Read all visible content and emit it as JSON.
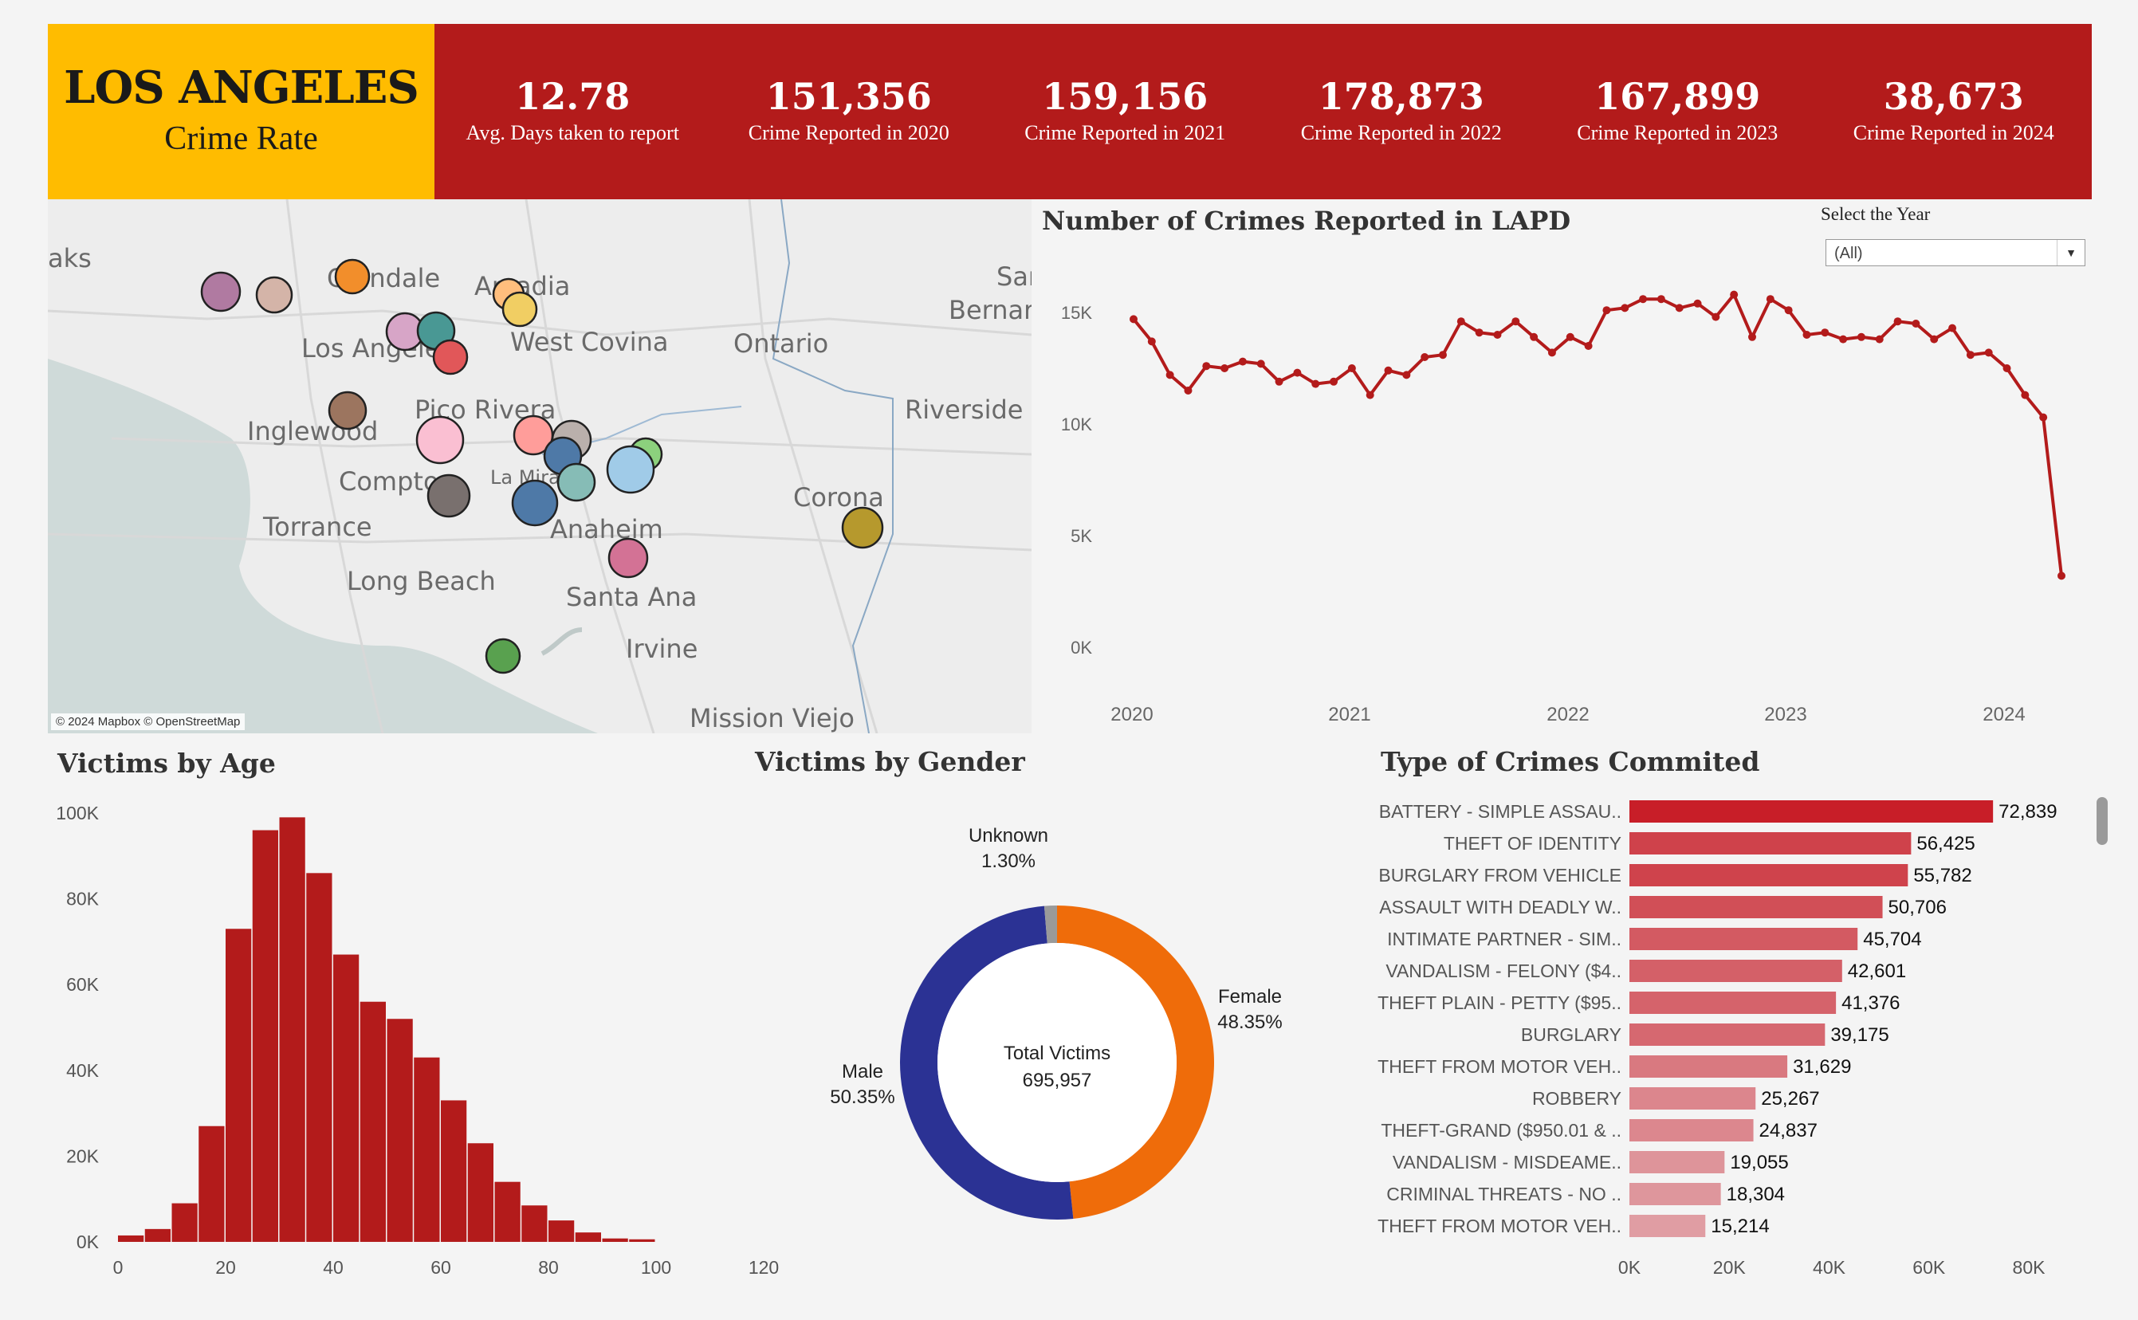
{
  "header": {
    "title": "LOS ANGELES",
    "subtitle": "Crime Rate",
    "kpis": [
      {
        "value": "12.78",
        "label": "Avg. Days taken to  report"
      },
      {
        "value": "151,356",
        "label": "Crime Reported in 2020"
      },
      {
        "value": "159,156",
        "label": "Crime Reported in 2021"
      },
      {
        "value": "178,873",
        "label": "Crime Reported in 2022"
      },
      {
        "value": "167,899",
        "label": "Crime Reported in 2023"
      },
      {
        "value": "38,673",
        "label": "Crime Reported in 2024"
      }
    ]
  },
  "map": {
    "labels": [
      "aks",
      "Glendale",
      "Arcadia",
      "West Covina",
      "Ontario",
      "San",
      "Bernar",
      "Los Angeles",
      "Pico Rivera",
      "Riverside",
      "Inglewood",
      "Compton",
      "La Mirada",
      "Corona",
      "Torrance",
      "Anaheim",
      "Long Beach",
      "Santa Ana",
      "Irvine",
      "Mission Viejo"
    ],
    "credit": "© 2024 Mapbox © OpenStreetMap",
    "point_colors": [
      "#b07aa1",
      "#d4b4a8",
      "#f28e2b",
      "#ffbe7d",
      "#f1ce63",
      "#d7a5c7",
      "#499894",
      "#e15759",
      "#9c755f",
      "#fabfd2",
      "#ff9d9a",
      "#bab0ac",
      "#4e79a7",
      "#86bcb6",
      "#8cd17d",
      "#a0cbe8",
      "#79706e",
      "#4e79a7",
      "#b6992d",
      "#d37295",
      "#59a14f"
    ]
  },
  "line_chart": {
    "title": "Number of Crimes Reported in LAPD",
    "filter_label": "Select the Year",
    "filter_value": "(All)",
    "color": "#b31b1b"
  },
  "age_chart": {
    "title": "Victims by Age",
    "color": "#b31b1b"
  },
  "gender_chart": {
    "title": "Victims by Gender",
    "center_label": "Total Victims",
    "center_value": "695,957",
    "slices": [
      {
        "name": "Female",
        "pct": "48.35%",
        "color": "#ef6c0a"
      },
      {
        "name": "Male",
        "pct": "50.35%",
        "color": "#2b3294"
      },
      {
        "name": "Unknown",
        "pct": "1.30%",
        "color": "#9a9a9a"
      }
    ]
  },
  "crime_types": {
    "title": "Type of Crimes Commited"
  },
  "chart_data": [
    {
      "type": "line",
      "title": "Number of Crimes Reported in LAPD",
      "x_ticks": [
        "2020",
        "2021",
        "2022",
        "2023",
        "2024"
      ],
      "y_ticks": [
        "0K",
        "5K",
        "10K",
        "15K"
      ],
      "ylim": [
        0,
        16500
      ],
      "x": [
        "2020-01",
        "2020-02",
        "2020-03",
        "2020-04",
        "2020-05",
        "2020-06",
        "2020-07",
        "2020-08",
        "2020-09",
        "2020-10",
        "2020-11",
        "2020-12",
        "2021-01",
        "2021-02",
        "2021-03",
        "2021-04",
        "2021-05",
        "2021-06",
        "2021-07",
        "2021-08",
        "2021-09",
        "2021-10",
        "2021-11",
        "2021-12",
        "2022-01",
        "2022-02",
        "2022-03",
        "2022-04",
        "2022-05",
        "2022-06",
        "2022-07",
        "2022-08",
        "2022-09",
        "2022-10",
        "2022-11",
        "2022-12",
        "2023-01",
        "2023-02",
        "2023-03",
        "2023-04",
        "2023-05",
        "2023-06",
        "2023-07",
        "2023-08",
        "2023-09",
        "2023-10",
        "2023-11",
        "2023-12",
        "2024-01",
        "2024-02",
        "2024-03",
        "2024-04"
      ],
      "values": [
        14700,
        13700,
        12200,
        11500,
        12600,
        12500,
        12800,
        12700,
        11900,
        12300,
        11800,
        11900,
        12500,
        11300,
        12400,
        12200,
        13000,
        13100,
        14600,
        14100,
        14000,
        14600,
        13900,
        13200,
        13900,
        13500,
        15100,
        15200,
        15600,
        15600,
        15200,
        15400,
        14800,
        15800,
        13900,
        15600,
        15100,
        14000,
        14100,
        13800,
        13900,
        13800,
        14600,
        14500,
        13800,
        14300,
        13100,
        13200,
        12500,
        11300,
        10300,
        3200
      ]
    },
    {
      "type": "bar",
      "title": "Victims by Age",
      "x_ticks": [
        "0",
        "20",
        "40",
        "60",
        "80",
        "100",
        "120"
      ],
      "y_ticks": [
        "0K",
        "20K",
        "40K",
        "60K",
        "80K",
        "100K"
      ],
      "ylim": [
        0,
        100000
      ],
      "xlim": [
        0,
        120
      ],
      "bin_width": 5,
      "bin_starts": [
        0,
        5,
        10,
        15,
        20,
        25,
        30,
        35,
        40,
        45,
        50,
        55,
        60,
        65,
        70,
        75,
        80,
        85,
        90,
        95
      ],
      "values": [
        1500,
        3000,
        9000,
        27000,
        73000,
        96000,
        99000,
        86000,
        67000,
        56000,
        52000,
        43000,
        33000,
        23000,
        14000,
        8500,
        5000,
        2200,
        800,
        600
      ]
    },
    {
      "type": "pie",
      "title": "Victims by Gender",
      "categories": [
        "Female",
        "Male",
        "Unknown"
      ],
      "values": [
        48.35,
        50.35,
        1.3
      ],
      "total": 695957
    },
    {
      "type": "bar",
      "title": "Type of Crimes Commited",
      "orientation": "horizontal",
      "x_ticks": [
        "0K",
        "20K",
        "40K",
        "60K",
        "80K"
      ],
      "xlim": [
        0,
        85000
      ],
      "categories": [
        "BATTERY - SIMPLE ASSAU..",
        "THEFT OF IDENTITY",
        "BURGLARY FROM VEHICLE",
        "ASSAULT WITH DEADLY W..",
        "INTIMATE PARTNER - SIM..",
        "VANDALISM - FELONY ($4..",
        "THEFT PLAIN - PETTY ($95..",
        "BURGLARY",
        "THEFT FROM MOTOR VEH..",
        "ROBBERY",
        "THEFT-GRAND ($950.01 & ..",
        "VANDALISM - MISDEAME..",
        "CRIMINAL THREATS - NO ..",
        "THEFT FROM MOTOR VEH.."
      ],
      "values": [
        72839,
        56425,
        55782,
        50706,
        45704,
        42601,
        41376,
        39175,
        31629,
        25267,
        24837,
        19055,
        18304,
        15214
      ],
      "value_labels": [
        "72,839",
        "56,425",
        "55,782",
        "50,706",
        "45,704",
        "42,601",
        "41,376",
        "39,175",
        "31,629",
        "25,267",
        "24,837",
        "19,055",
        "18,304",
        "15,214"
      ]
    }
  ]
}
